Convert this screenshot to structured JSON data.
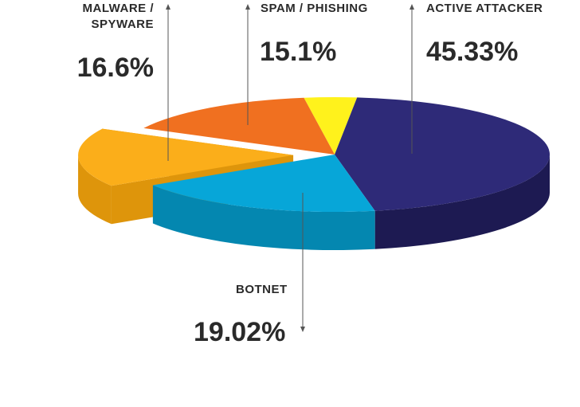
{
  "chart_data": {
    "type": "pie",
    "title": "",
    "style": "3d-exploded",
    "slices": [
      {
        "label": "ACTIVE ATTACKER",
        "value": 45.33,
        "display": "45.33%",
        "color": "#2e2a78",
        "side_color": "#1d1a52"
      },
      {
        "label": "BOTNET",
        "value": 19.02,
        "display": "19.02%",
        "color": "#07a6d8",
        "side_color": "#0487b0"
      },
      {
        "label": "MALWARE /",
        "label2": "SPYWARE",
        "value": 16.6,
        "display": "16.6%",
        "color": "#fbae1a",
        "side_color": "#de950b"
      },
      {
        "label": "SPAM / PHISHING",
        "value": 15.1,
        "display": "15.1%",
        "color": "#f07020",
        "side_color": "#c85410"
      },
      {
        "label": "",
        "value": 3.95,
        "display": "",
        "color": "#fff21c",
        "side_color": "#d8cc10"
      }
    ]
  }
}
